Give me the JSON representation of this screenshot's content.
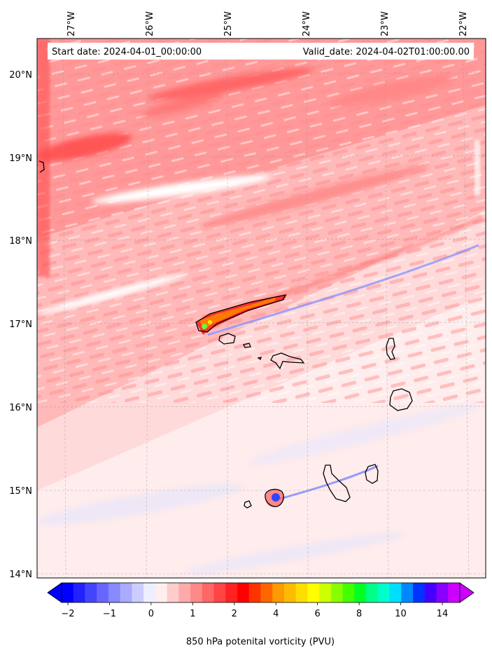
{
  "map": {
    "start_label": "Start date: 2024-04-01_00:00:00",
    "valid_label": "Valid_date: 2024-04-02T01:00:00.00",
    "lon_ticks": [
      "27°W",
      "26°W",
      "25°W",
      "24°W",
      "23°W",
      "22°W"
    ],
    "lat_ticks": [
      "20°N",
      "19°N",
      "18°N",
      "17°N",
      "16°N",
      "15°N",
      "14°N"
    ],
    "colorbar": {
      "label": "850 hPa potenital vorticity (PVU)",
      "tick_labels": [
        "−2",
        "−1",
        "0",
        "1",
        "2",
        "4",
        "6",
        "8",
        "10",
        "14"
      ],
      "colors": [
        "#0000ff",
        "#2222ff",
        "#4444ff",
        "#6666ff",
        "#8888ff",
        "#aaaaff",
        "#ccccff",
        "#eeeeff",
        "#ffeeee",
        "#ffcccc",
        "#ffaaaa",
        "#ff8888",
        "#ff6666",
        "#ff4444",
        "#ff2222",
        "#ff0000",
        "#ff3300",
        "#ff6600",
        "#ff9900",
        "#ffbb00",
        "#ffdd00",
        "#ffff00",
        "#ccff00",
        "#88ff00",
        "#44ff00",
        "#00ff22",
        "#00ff88",
        "#00ffcc",
        "#00ddff",
        "#0088ff",
        "#0033ff",
        "#4400ff",
        "#8800ff",
        "#cc00ff"
      ]
    }
  }
}
